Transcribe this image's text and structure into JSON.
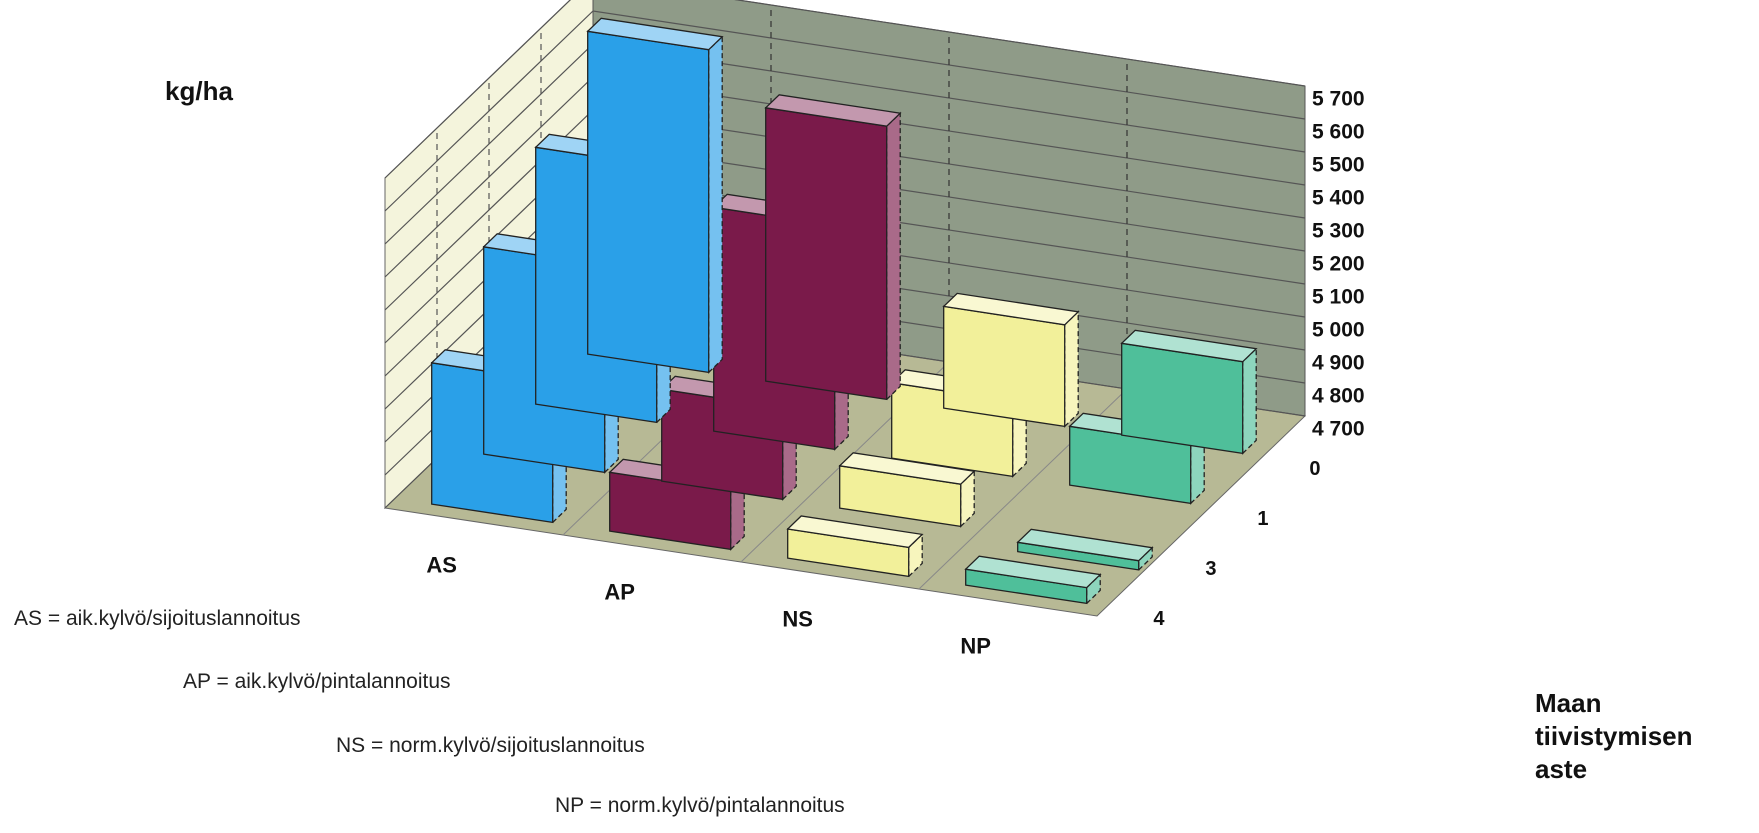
{
  "chart_data": {
    "type": "bar",
    "title": "",
    "ylabel": "kg/ha",
    "zlabel": [
      "Maan",
      "tiivistymisen",
      "aste"
    ],
    "ylim": [
      4700,
      5700
    ],
    "yticks": [
      "4 700",
      "4 800",
      "4 900",
      "5 000",
      "5 100",
      "5 200",
      "5 300",
      "5 400",
      "5 500",
      "5 600",
      "5 700"
    ],
    "categories": [
      "AS",
      "AP",
      "NS",
      "NP"
    ],
    "depth_categories": [
      "0",
      "1",
      "3",
      "4"
    ],
    "series": [
      {
        "category": "AS",
        "color": "#2aa0e8",
        "values": [
          5650,
          5450,
          5300,
          5100
        ]
      },
      {
        "category": "AP",
        "color": "#7a1a4a",
        "values": [
          5500,
          5350,
          4950,
          4850
        ]
      },
      {
        "category": "NS",
        "color": "#f2f09a",
        "values": [
          4980,
          4900,
          4800,
          4760
        ]
      },
      {
        "category": "NP",
        "color": "#4fbf9a",
        "values": [
          4950,
          4850,
          4650,
          4720
        ]
      }
    ],
    "legend": [
      "AS = aik.kylvö/sijoituslannoitus",
      "AP = aik.kylvö/pintalannoitus",
      "NS = norm.kylvö/sijoituslannoitus",
      "NP = norm.kylvö/pintalannoitus"
    ],
    "colors": {
      "wall": "#8f9b88",
      "side_wall": "#f4f4dc",
      "floor": "#b7b995"
    }
  }
}
